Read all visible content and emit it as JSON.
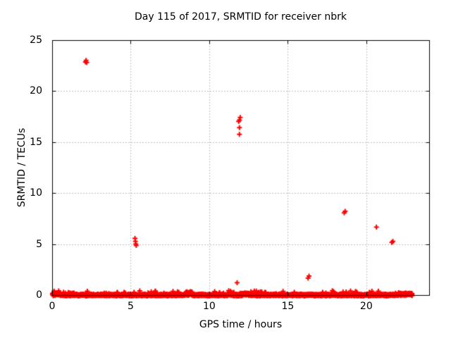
{
  "window": {
    "kind": "gnuplot-style static plot image",
    "background": "#ffffff"
  },
  "chart_data": {
    "type": "scatter",
    "title": "Day 115 of 2017, SRMTID for receiver nbrk",
    "xlabel": "GPS time / hours",
    "ylabel": "SRMTID / TECUs",
    "xlim": [
      0,
      24
    ],
    "ylim": [
      0,
      25
    ],
    "xticks": [
      0,
      5,
      10,
      15,
      20
    ],
    "yticks": [
      0,
      5,
      10,
      15,
      20,
      25
    ],
    "grid": true,
    "grid_style": "dotted",
    "legend": "none",
    "marker": "plus",
    "colors": {
      "series": "#ff0000",
      "grid": "#808080",
      "border": "#000000",
      "text": "#000000"
    },
    "outlier_points": [
      [
        2.1,
        22.9
      ],
      [
        2.14,
        23.05
      ],
      [
        2.18,
        22.85
      ],
      [
        5.25,
        5.6
      ],
      [
        5.28,
        5.3
      ],
      [
        5.3,
        5.05
      ],
      [
        5.33,
        4.9
      ],
      [
        11.75,
        1.25
      ],
      [
        11.85,
        17.05
      ],
      [
        11.9,
        17.2
      ],
      [
        11.95,
        17.45
      ],
      [
        11.9,
        16.45
      ],
      [
        11.9,
        15.8
      ],
      [
        16.27,
        1.7
      ],
      [
        16.33,
        1.9
      ],
      [
        18.57,
        8.1
      ],
      [
        18.63,
        8.25
      ],
      [
        20.62,
        6.7
      ],
      [
        21.6,
        5.2
      ],
      [
        21.67,
        5.3
      ]
    ],
    "baseline_band": {
      "description": "dense noise band of plus markers hugging 0 TECU for the whole day",
      "x_start": 0,
      "x_end": 22.9,
      "y_center": 0.04,
      "y_typical_spread": 0.12,
      "y_min": -0.2,
      "y_max": 0.6,
      "n_points": 2800,
      "spike_fraction": 0.04,
      "spike_extra": 0.38,
      "bumps": [
        {
          "x": 0.15,
          "w": 0.35,
          "amp": 0.22
        },
        {
          "x": 8.65,
          "w": 0.2,
          "amp": 0.3
        },
        {
          "x": 11.3,
          "w": 0.15,
          "amp": 0.18
        },
        {
          "x": 12.2,
          "w": 0.3,
          "amp": 0.15
        },
        {
          "x": 22.5,
          "w": 0.5,
          "amp": 0.12
        }
      ]
    }
  }
}
